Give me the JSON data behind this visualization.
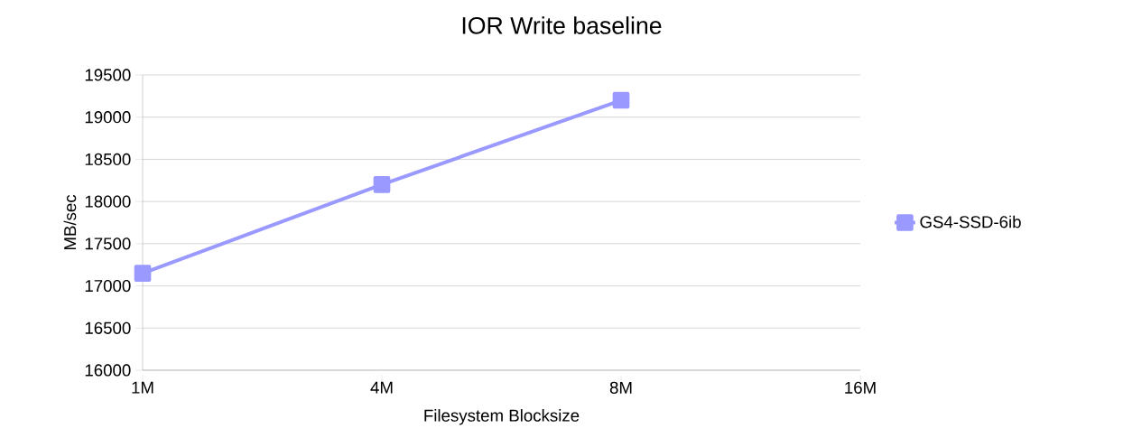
{
  "chart_data": {
    "type": "line",
    "title": "IOR Write baseline",
    "xlabel": "Filesystem Blocksize",
    "ylabel": "MB/sec",
    "categories": [
      "1M",
      "4M",
      "8M",
      "16M"
    ],
    "series": [
      {
        "name": "GS4-SSD-6ib",
        "color": "#9999ff",
        "values": [
          17150,
          18200,
          19200,
          null
        ]
      }
    ],
    "ylim": [
      16000,
      19500
    ],
    "yticks": [
      16000,
      16500,
      17000,
      17500,
      18000,
      18500,
      19000,
      19500
    ],
    "grid": "y",
    "legend": "right",
    "marker": "square",
    "line_style": "solid"
  }
}
